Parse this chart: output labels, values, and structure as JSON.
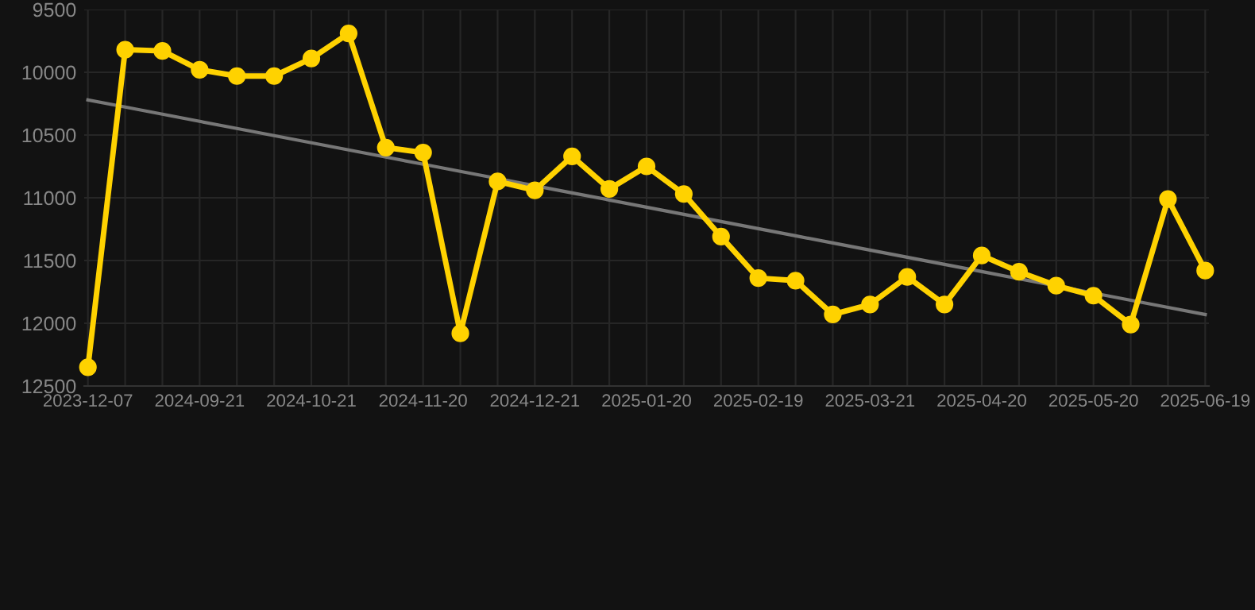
{
  "chart_data": {
    "type": "line",
    "categories": [
      "2023-12-07",
      null,
      null,
      "2024-09-21",
      null,
      null,
      "2024-10-21",
      null,
      null,
      "2024-11-20",
      null,
      null,
      "2024-12-21",
      null,
      null,
      "2025-01-20",
      null,
      null,
      "2025-02-19",
      null,
      null,
      "2025-03-21",
      null,
      null,
      "2025-04-20",
      null,
      null,
      "2025-05-20",
      null,
      null,
      "2025-06-19"
    ],
    "series": [
      {
        "color": "#ffd200",
        "marker": "circle",
        "values": [
          12350,
          9820,
          9830,
          9980,
          10030,
          10030,
          9890,
          9690,
          10600,
          10640,
          12080,
          10870,
          10940,
          10670,
          10930,
          10750,
          10970,
          11310,
          11640,
          11660,
          11930,
          11850,
          11630,
          11850,
          11460,
          11590,
          11700,
          11780,
          12010,
          11010,
          11580
        ]
      },
      {
        "type": "line",
        "color": "#777777",
        "marker": "none",
        "values": [
          10220,
          10277,
          10334,
          10391,
          10448,
          10505,
          10562,
          10619,
          10676,
          10733,
          10790,
          10847,
          10904,
          10961,
          11018,
          11075,
          11132,
          11189,
          11246,
          11303,
          11360,
          11417,
          11474,
          11531,
          11588,
          11645,
          11702,
          11759,
          11816,
          11873,
          11930
        ]
      }
    ],
    "ylim": [
      12500,
      9500
    ],
    "yticks": [
      9500,
      10000,
      10500,
      11000,
      11500,
      12000,
      12500
    ],
    "grid": true
  }
}
